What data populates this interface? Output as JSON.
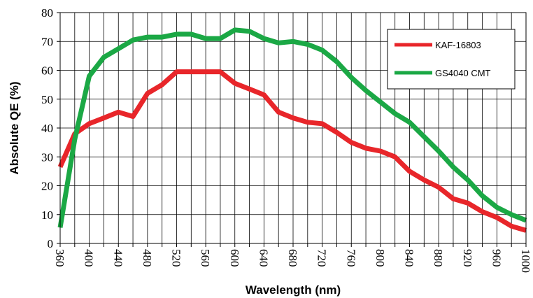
{
  "chart_data": {
    "type": "line",
    "xlabel": "Wavelength (nm)",
    "ylabel": "Absolute QE (%)",
    "xlim": [
      360,
      1000
    ],
    "ylim": [
      0,
      80
    ],
    "x_ticks": [
      360,
      400,
      440,
      480,
      520,
      560,
      600,
      640,
      680,
      720,
      760,
      800,
      840,
      880,
      920,
      960,
      1000
    ],
    "y_ticks": [
      0,
      10,
      20,
      30,
      40,
      50,
      60,
      70,
      80
    ],
    "x_minor_step": 20,
    "grid": true,
    "legend_position": "top-right",
    "series": [
      {
        "name": "KAF-16803",
        "color": "#e8262a",
        "x": [
          360,
          380,
          400,
          420,
          440,
          460,
          480,
          500,
          520,
          540,
          560,
          580,
          600,
          620,
          640,
          660,
          680,
          700,
          720,
          740,
          760,
          780,
          800,
          820,
          840,
          860,
          880,
          900,
          920,
          940,
          960,
          980,
          1000
        ],
        "values": [
          26.5,
          38,
          41.5,
          43.5,
          45.5,
          44,
          52,
          55,
          59.5,
          59.5,
          59.5,
          59.5,
          55.5,
          53.5,
          51.5,
          45.5,
          43.5,
          42,
          41.5,
          38.5,
          35,
          33,
          32,
          30,
          25,
          22,
          19.5,
          15.5,
          14,
          11,
          9,
          6,
          4.5
        ]
      },
      {
        "name": "GS4040 CMT",
        "color": "#1ba845",
        "x": [
          360,
          380,
          400,
          420,
          440,
          460,
          480,
          500,
          520,
          540,
          560,
          580,
          600,
          620,
          640,
          660,
          680,
          700,
          720,
          740,
          760,
          780,
          800,
          820,
          840,
          860,
          880,
          900,
          920,
          940,
          960,
          980,
          1000
        ],
        "values": [
          5.5,
          36,
          58,
          64.5,
          67.5,
          70.5,
          71.5,
          71.5,
          72.5,
          72.5,
          71,
          71,
          74,
          73.5,
          71,
          69.5,
          70,
          69,
          67,
          63,
          57.5,
          53,
          49,
          45,
          42,
          37,
          32,
          26.5,
          22,
          16.5,
          12.5,
          10,
          8
        ]
      }
    ]
  }
}
